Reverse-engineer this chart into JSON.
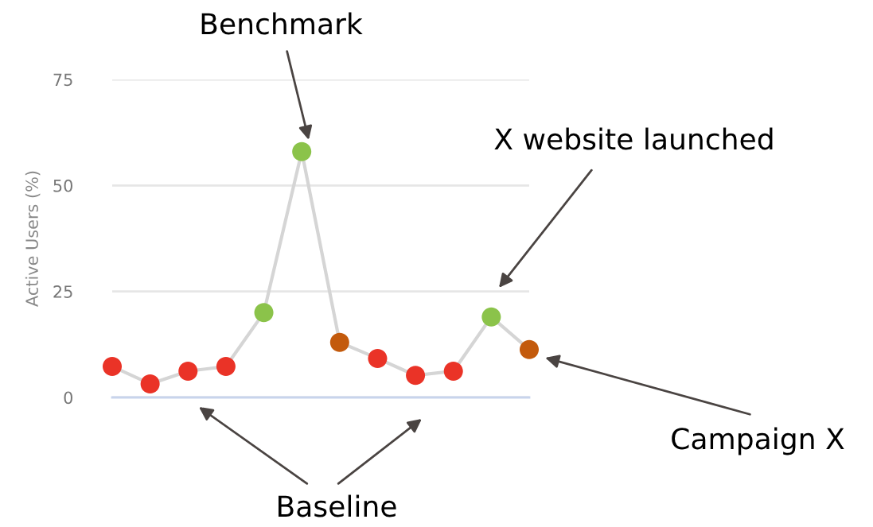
{
  "chart_data": {
    "type": "line",
    "ylabel": "Active Users (%)",
    "categories": [
      null,
      null,
      null,
      null,
      null,
      null,
      null,
      null,
      null,
      null,
      null,
      null
    ],
    "series": [
      {
        "color": "#d5d5d5",
        "values": [
          7.3,
          3.2,
          6.2,
          7.3,
          20,
          58,
          13,
          9.2,
          5.2,
          6.2,
          19,
          11.3
        ],
        "colors": [
          "#ea3327",
          "#ea3327",
          "#ea3327",
          "#ea3327",
          "#8bc34a",
          "#8bc34a",
          "#c35a0c",
          "#ea3327",
          "#ea3327",
          "#ea3327",
          "#8bc34a",
          "#c35a0c"
        ]
      }
    ],
    "ylim": [
      0,
      75
    ],
    "yticks": [
      0,
      25,
      50,
      75
    ],
    "grid": "y",
    "marker": "circle",
    "annotations": [
      "Benchmark",
      "X website launched",
      "Campaign X",
      "Baseline"
    ]
  }
}
